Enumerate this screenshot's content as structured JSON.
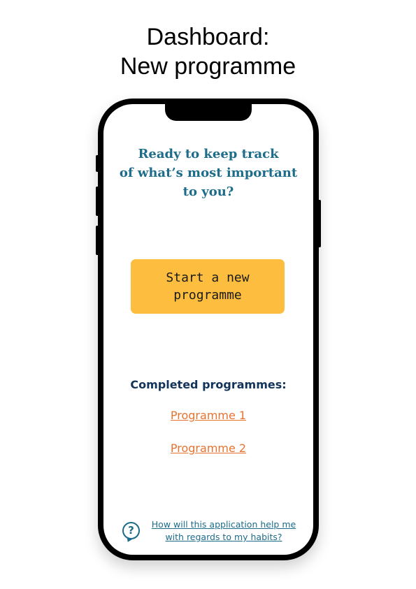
{
  "page_title": {
    "line1": "Dashboard:",
    "line2": "New programme"
  },
  "screen": {
    "headline": {
      "line1": "Ready to keep track",
      "line2": "of what’s most important",
      "line3": "to you?"
    },
    "start_button": {
      "line1": "Start a new",
      "line2": "programme"
    },
    "completed_heading": "Completed programmes:",
    "programmes": [
      "Programme 1",
      "Programme 2"
    ],
    "help": {
      "icon": "question-bubble-icon",
      "line1": "How will this application help me",
      "line2": "with regards to my habits?"
    }
  },
  "colors": {
    "headline": "#1d6c8a",
    "button": "#fdbd3e",
    "heading": "#13345a",
    "link": "#e8732f",
    "help": "#1d6c8a"
  }
}
